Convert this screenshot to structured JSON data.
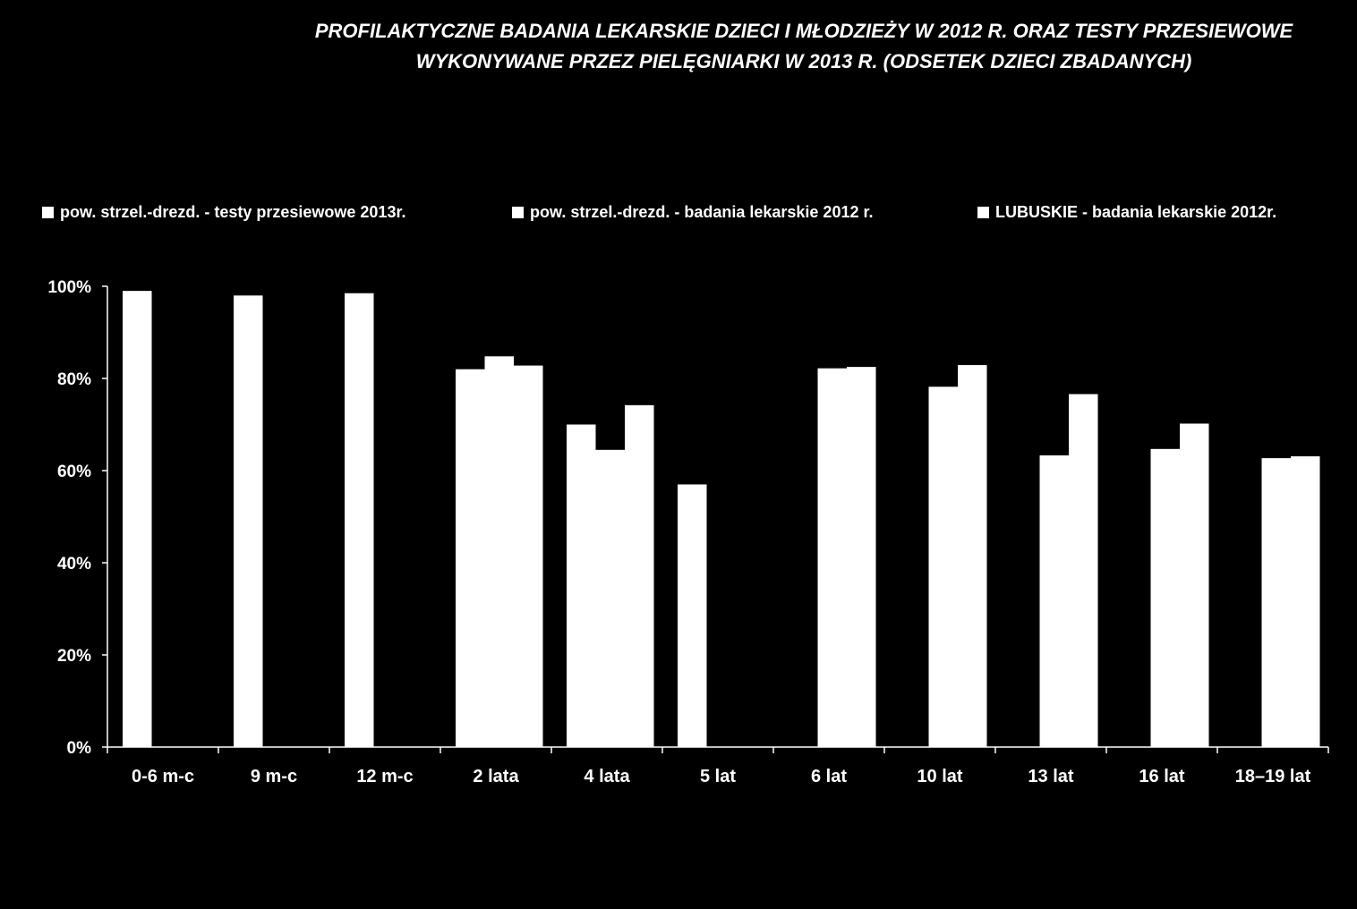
{
  "chart_data": {
    "type": "bar",
    "title_lines": [
      "PROFILAKTYCZNE BADANIA LEKARSKIE DZIECI I MŁODZIEŻY  W 2012 R. ORAZ TESTY PRZESIEWOWE",
      "WYKONYWANE PRZEZ PIELĘGNIARKI W 2013 R. (ODSETEK DZIECI ZBADANYCH)"
    ],
    "categories": [
      "0-6 m-c",
      "9 m-c",
      "12 m-c",
      "2 lata",
      "4 lata",
      "5 lat",
      "6 lat",
      "10 lat",
      "13 lat",
      "16 lat",
      "18–19 lat"
    ],
    "series": [
      {
        "name": "pow. strzel.-drezd. - testy przesiewowe 2013r.",
        "values": [
          99,
          98,
          98.5,
          82,
          70,
          57,
          null,
          null,
          null,
          null,
          null
        ]
      },
      {
        "name": "pow. strzel.-drezd. - badania lekarskie 2012 r.",
        "values": [
          null,
          null,
          null,
          84.8,
          64.5,
          null,
          82.2,
          78.2,
          63.3,
          64.7,
          62.7
        ]
      },
      {
        "name": "LUBUSKIE - badania lekarskie 2012r.",
        "values": [
          null,
          null,
          null,
          82.8,
          74.2,
          null,
          82.5,
          82.9,
          76.6,
          70.2,
          63.1
        ]
      }
    ],
    "ylim": [
      0,
      100
    ],
    "yticks": [
      0,
      20,
      40,
      60,
      80,
      100
    ],
    "ytick_labels": [
      "0%",
      "20%",
      "40%",
      "60%",
      "80%",
      "100%"
    ],
    "legend_position": "top",
    "grid": false,
    "colors": {
      "background": "#000000",
      "bars": "#ffffff",
      "text": "#ffffff",
      "axis": "#ffffff"
    }
  }
}
